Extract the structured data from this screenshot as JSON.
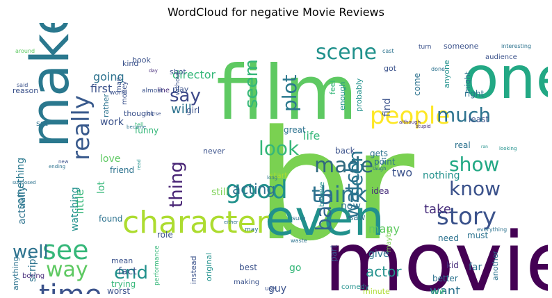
{
  "title": "WordCloud for negative Movie Reviews",
  "colors": {
    "dark_purple": "#440154",
    "purple": "#472d7b",
    "indigo": "#3b528b",
    "slate": "#2c728e",
    "teal": "#21918c",
    "sea": "#28ae80",
    "green": "#5ec962",
    "lime": "#addc30",
    "yellow": "#fde725"
  },
  "words": [
    {
      "text": "br",
      "color": "#7ad151",
      "size": 218,
      "rot": 0
    },
    {
      "text": "movie",
      "color": "#440154",
      "size": 118,
      "rot": 0
    },
    {
      "text": "film",
      "color": "#5ec962",
      "size": 108,
      "rot": 0
    },
    {
      "text": "one",
      "color": "#22a884",
      "size": 84,
      "rot": 0
    },
    {
      "text": "make",
      "color": "#2a788e",
      "size": 76,
      "rot": -90
    },
    {
      "text": "even",
      "color": "#21918c",
      "size": 70,
      "rot": 0
    },
    {
      "text": "character",
      "color": "#addc30",
      "size": 44,
      "rot": 0
    },
    {
      "text": "good",
      "color": "#21918c",
      "size": 36,
      "rot": 0
    },
    {
      "text": "time",
      "color": "#3b528b",
      "size": 40,
      "rot": 0
    },
    {
      "text": "see",
      "color": "#35b779",
      "size": 38,
      "rot": 0
    },
    {
      "text": "really",
      "color": "#38598c",
      "size": 34,
      "rot": -90
    },
    {
      "text": "people",
      "color": "#fde725",
      "size": 34,
      "rot": 0
    },
    {
      "text": "story",
      "color": "#3b528b",
      "size": 34,
      "rot": 0
    },
    {
      "text": "scene",
      "color": "#21918c",
      "size": 30,
      "rot": 0
    },
    {
      "text": "think",
      "color": "#2c728e",
      "size": 32,
      "rot": 0
    },
    {
      "text": "much",
      "color": "#2c728e",
      "size": 28,
      "rot": 0
    },
    {
      "text": "made",
      "color": "#30697e",
      "size": 30,
      "rot": 0
    },
    {
      "text": "look",
      "color": "#35b779",
      "size": 28,
      "rot": 0
    },
    {
      "text": "know",
      "color": "#3b528b",
      "size": 28,
      "rot": 0
    },
    {
      "text": "show",
      "color": "#22a884",
      "size": 28,
      "rot": 0
    },
    {
      "text": "seen",
      "color": "#2a788e",
      "size": 28,
      "rot": -90
    },
    {
      "text": "bad",
      "color": "#31688e",
      "size": 30,
      "rot": -90
    },
    {
      "text": "watch",
      "color": "#2c728e",
      "size": 28,
      "rot": -90
    },
    {
      "text": "plot",
      "color": "#2a788e",
      "size": 28,
      "rot": -90
    },
    {
      "text": "seem",
      "color": "#35b779",
      "size": 26,
      "rot": -90
    },
    {
      "text": "say",
      "color": "#3e4989",
      "size": 26,
      "rot": 0
    },
    {
      "text": "way",
      "color": "#5ec962",
      "size": 30,
      "rot": 0
    },
    {
      "text": "well",
      "color": "#2c728e",
      "size": 26,
      "rot": 0
    },
    {
      "text": "end",
      "color": "#21918c",
      "size": 26,
      "rot": 0
    },
    {
      "text": "thing",
      "color": "#482475",
      "size": 26,
      "rot": -90
    },
    {
      "text": "acting",
      "color": "#2c728e",
      "size": 20,
      "rot": 0
    },
    {
      "text": "actor",
      "color": "#21918c",
      "size": 20,
      "rot": 0
    },
    {
      "text": "take",
      "color": "#472d7b",
      "size": 18,
      "rot": 0
    },
    {
      "text": "want",
      "color": "#2c728e",
      "size": 18,
      "rot": 0
    },
    {
      "text": "will",
      "color": "#2c728e",
      "size": 18,
      "rot": 0
    },
    {
      "text": "director",
      "color": "#35b779",
      "size": 16,
      "rot": 0
    },
    {
      "text": "going",
      "color": "#2c728e",
      "size": 16,
      "rot": 0
    },
    {
      "text": "first",
      "color": "#3b528b",
      "size": 16,
      "rot": 0
    },
    {
      "text": "little",
      "color": "#35b779",
      "size": 16,
      "rot": -90
    },
    {
      "text": "watching",
      "color": "#21918c",
      "size": 14,
      "rot": -90
    },
    {
      "text": "actually",
      "color": "#2c728e",
      "size": 14,
      "rot": -90
    },
    {
      "text": "something",
      "color": "#2a788e",
      "size": 14,
      "rot": -90
    },
    {
      "text": "work",
      "color": "#3b528b",
      "size": 14,
      "rot": 0
    },
    {
      "text": "love",
      "color": "#5ec962",
      "size": 14,
      "rot": 0
    },
    {
      "text": "friend",
      "color": "#2c728e",
      "size": 12,
      "rot": 0
    },
    {
      "text": "lot",
      "color": "#35b779",
      "size": 14,
      "rot": -90
    },
    {
      "text": "still",
      "color": "#7ad151",
      "size": 14,
      "rot": 0
    },
    {
      "text": "two",
      "color": "#3b528b",
      "size": 16,
      "rot": 0
    },
    {
      "text": "nothing",
      "color": "#21918c",
      "size": 14,
      "rot": 0
    },
    {
      "text": "life",
      "color": "#35b779",
      "size": 16,
      "rot": 0
    },
    {
      "text": "back",
      "color": "#3b528b",
      "size": 12,
      "rot": 0
    },
    {
      "text": "gets",
      "color": "#2c728e",
      "size": 12,
      "rot": 0
    },
    {
      "text": "point",
      "color": "#2c728e",
      "size": 12,
      "rot": 0
    },
    {
      "text": "idea",
      "color": "#472d7b",
      "size": 12,
      "rot": 0
    },
    {
      "text": "start",
      "color": "#addc30",
      "size": 11,
      "rot": 0
    },
    {
      "text": "real",
      "color": "#2c728e",
      "size": 12,
      "rot": 0
    },
    {
      "text": "least",
      "color": "#3b528b",
      "size": 12,
      "rot": 0
    },
    {
      "text": "right",
      "color": "#2c728e",
      "size": 12,
      "rot": 0
    },
    {
      "text": "come",
      "color": "#2c728e",
      "size": 12,
      "rot": -90
    },
    {
      "text": "anyone",
      "color": "#21918c",
      "size": 11,
      "rot": -90
    },
    {
      "text": "might",
      "color": "#2c728e",
      "size": 11,
      "rot": -90
    },
    {
      "text": "probably",
      "color": "#21918c",
      "size": 11,
      "rot": -90
    },
    {
      "text": "enough",
      "color": "#21918c",
      "size": 11,
      "rot": -90
    },
    {
      "text": "find",
      "color": "#3b528b",
      "size": 14,
      "rot": -90
    },
    {
      "text": "believe",
      "color": "#21918c",
      "size": 10,
      "rot": -90
    },
    {
      "text": "feel",
      "color": "#35b779",
      "size": 11,
      "rot": -90
    },
    {
      "text": "great",
      "color": "#2c728e",
      "size": 12,
      "rot": 0
    },
    {
      "text": "never",
      "color": "#3b528b",
      "size": 11,
      "rot": 0
    },
    {
      "text": "found",
      "color": "#2c728e",
      "size": 12,
      "rot": 0
    },
    {
      "text": "role",
      "color": "#3b528b",
      "size": 12,
      "rot": 0
    },
    {
      "text": "saw",
      "color": "#2c728e",
      "size": 12,
      "rot": 0
    },
    {
      "text": "now",
      "color": "#2c728e",
      "size": 14,
      "rot": 0
    },
    {
      "text": "many",
      "color": "#5ec962",
      "size": 16,
      "rot": 0
    },
    {
      "text": "part",
      "color": "#3b528b",
      "size": 12,
      "rot": -90
    },
    {
      "text": "go",
      "color": "#35b779",
      "size": 14,
      "rot": 0
    },
    {
      "text": "give",
      "color": "#2c728e",
      "size": 14,
      "rot": 0
    },
    {
      "text": "kid",
      "color": "#472d7b",
      "size": 12,
      "rot": 0
    },
    {
      "text": "far",
      "color": "#2c728e",
      "size": 14,
      "rot": 0
    },
    {
      "text": "need",
      "color": "#2c728e",
      "size": 12,
      "rot": 0
    },
    {
      "text": "must",
      "color": "#2c728e",
      "size": 12,
      "rot": 0
    },
    {
      "text": "better",
      "color": "#2c728e",
      "size": 12,
      "rot": 0
    },
    {
      "text": "put",
      "color": "#35b779",
      "size": 12,
      "rot": 0
    },
    {
      "text": "another",
      "color": "#2c728e",
      "size": 11,
      "rot": -90
    },
    {
      "text": "let",
      "color": "#3b528b",
      "size": 10,
      "rot": 0
    },
    {
      "text": "maybe",
      "color": "#7ad151",
      "size": 10,
      "rot": -90
    },
    {
      "text": "minute",
      "color": "#addc30",
      "size": 11,
      "rot": 0
    },
    {
      "text": "though",
      "color": "#2c728e",
      "size": 12,
      "rot": 0
    },
    {
      "text": "comedy",
      "color": "#21918c",
      "size": 10,
      "rot": 0
    },
    {
      "text": "guy",
      "color": "#3b528b",
      "size": 14,
      "rot": 0
    },
    {
      "text": "best",
      "color": "#3b528b",
      "size": 12,
      "rot": 0
    },
    {
      "text": "making",
      "color": "#3b528b",
      "size": 10,
      "rot": 0
    },
    {
      "text": "use",
      "color": "#3b528b",
      "size": 9,
      "rot": 0
    },
    {
      "text": "original",
      "color": "#21918c",
      "size": 11,
      "rot": -90
    },
    {
      "text": "instead",
      "color": "#3b528b",
      "size": 11,
      "rot": -90
    },
    {
      "text": "performance",
      "color": "#35b779",
      "size": 9,
      "rot": -90
    },
    {
      "text": "fact",
      "color": "#3b528b",
      "size": 14,
      "rot": 0
    },
    {
      "text": "trying",
      "color": "#35b779",
      "size": 12,
      "rot": 0
    },
    {
      "text": "mean",
      "color": "#3b528b",
      "size": 11,
      "rot": 0
    },
    {
      "text": "worst",
      "color": "#3b528b",
      "size": 12,
      "rot": 0
    },
    {
      "text": "quite",
      "color": "#21918c",
      "size": 9,
      "rot": 0
    },
    {
      "text": "script",
      "color": "#2c728e",
      "size": 14,
      "rot": -90
    },
    {
      "text": "anything",
      "color": "#2c728e",
      "size": 11,
      "rot": -90
    },
    {
      "text": "boring",
      "color": "#472d7b",
      "size": 10,
      "rot": 0
    },
    {
      "text": "watched",
      "color": "#2c728e",
      "size": 9,
      "rot": 0
    },
    {
      "text": "funny",
      "color": "#35b779",
      "size": 12,
      "rot": 0
    },
    {
      "text": "girl",
      "color": "#3b528b",
      "size": 12,
      "rot": 0
    },
    {
      "text": "play",
      "color": "#3b528b",
      "size": 11,
      "rot": 0
    },
    {
      "text": "shot",
      "color": "#3b528b",
      "size": 11,
      "rot": 0
    },
    {
      "text": "book",
      "color": "#3b528b",
      "size": 11,
      "rot": 0
    },
    {
      "text": "kind",
      "color": "#3b528b",
      "size": 11,
      "rot": 0
    },
    {
      "text": "reason",
      "color": "#3b528b",
      "size": 11,
      "rot": 0
    },
    {
      "text": "set",
      "color": "#2c728e",
      "size": 11,
      "rot": 0
    },
    {
      "text": "thought",
      "color": "#3b528b",
      "size": 11,
      "rot": 0
    },
    {
      "text": "rather",
      "color": "#2c728e",
      "size": 11,
      "rot": -90
    },
    {
      "text": "money",
      "color": "#3b528b",
      "size": 10,
      "rot": -90
    },
    {
      "text": "man",
      "color": "#3b528b",
      "size": 10,
      "rot": -90
    },
    {
      "text": "line",
      "color": "#472d7b",
      "size": 10,
      "rot": 0
    },
    {
      "text": "almost",
      "color": "#3b528b",
      "size": 9,
      "rot": 0
    },
    {
      "text": "without",
      "color": "#3b528b",
      "size": 9,
      "rot": -90
    },
    {
      "text": "world",
      "color": "#3b528b",
      "size": 9,
      "rot": 0
    },
    {
      "text": "said",
      "color": "#3b528b",
      "size": 8,
      "rot": 0
    },
    {
      "text": "around",
      "color": "#5ec962",
      "size": 8,
      "rot": 0
    },
    {
      "text": "day",
      "color": "#472d7b",
      "size": 7,
      "rot": 0
    },
    {
      "text": "course",
      "color": "#3b528b",
      "size": 7,
      "rot": 0
    },
    {
      "text": "tell",
      "color": "#35b779",
      "size": 8,
      "rot": 0
    },
    {
      "text": "become",
      "color": "#2c728e",
      "size": 7,
      "rot": 0
    },
    {
      "text": "ending",
      "color": "#2c728e",
      "size": 7,
      "rot": 0
    },
    {
      "text": "new",
      "color": "#3b528b",
      "size": 7,
      "rot": 0
    },
    {
      "text": "read",
      "color": "#21918c",
      "size": 7,
      "rot": -90
    },
    {
      "text": "supposed",
      "color": "#2c728e",
      "size": 7,
      "rot": 0
    },
    {
      "text": "someone",
      "color": "#3b528b",
      "size": 11,
      "rot": 0
    },
    {
      "text": "got",
      "color": "#3b528b",
      "size": 11,
      "rot": 0
    },
    {
      "text": "turn",
      "color": "#3b528b",
      "size": 9,
      "rot": 0
    },
    {
      "text": "cast",
      "color": "#2c728e",
      "size": 8,
      "rot": 0
    },
    {
      "text": "done",
      "color": "#2c728e",
      "size": 8,
      "rot": 0
    },
    {
      "text": "audience",
      "color": "#3b528b",
      "size": 10,
      "rot": 0
    },
    {
      "text": "interesting",
      "color": "#2c728e",
      "size": 8,
      "rot": 0
    },
    {
      "text": "although",
      "color": "#472d7b",
      "size": 7,
      "rot": 0
    },
    {
      "text": "stupid",
      "color": "#472d7b",
      "size": 7,
      "rot": 0
    },
    {
      "text": "ran",
      "color": "#21918c",
      "size": 6,
      "rot": 0
    },
    {
      "text": "looking",
      "color": "#21918c",
      "size": 7,
      "rot": 0
    },
    {
      "text": "laugh",
      "color": "#2c728e",
      "size": 7,
      "rot": 0
    },
    {
      "text": "bit",
      "color": "#2c728e",
      "size": 7,
      "rot": -90
    },
    {
      "text": "long",
      "color": "#2c728e",
      "size": 7,
      "rot": 0
    },
    {
      "text": "either",
      "color": "#2c728e",
      "size": 7,
      "rot": 0
    },
    {
      "text": "waste",
      "color": "#2c728e",
      "size": 8,
      "rot": 0
    },
    {
      "text": "may",
      "color": "#2c728e",
      "size": 9,
      "rot": 0
    },
    {
      "text": "everything",
      "color": "#2c728e",
      "size": 8,
      "rot": 0
    },
    {
      "text": "sure",
      "color": "#2c728e",
      "size": 9,
      "rot": 0
    }
  ]
}
